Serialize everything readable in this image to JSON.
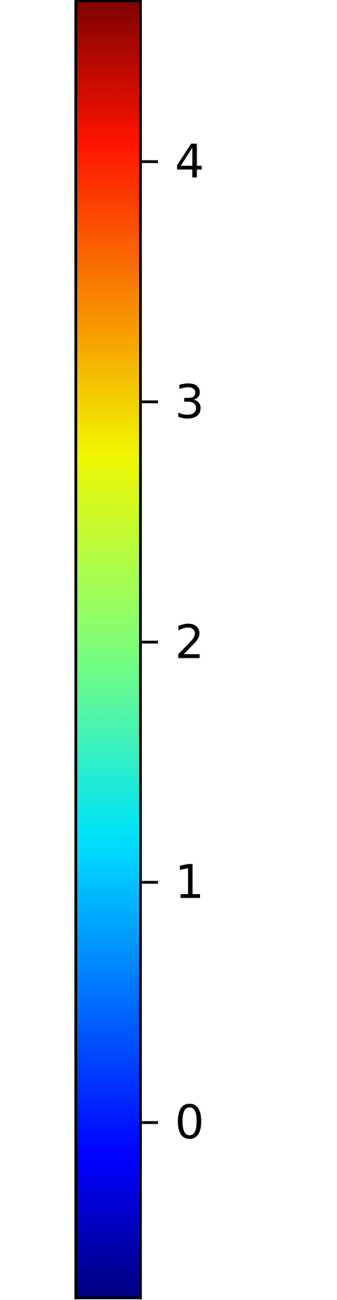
{
  "chart_data": {
    "type": "heatmap",
    "colormap": "jet",
    "orientation": "vertical",
    "colorbar_range": [
      -0.73,
      4.67
    ],
    "ticks": [
      {
        "value": 0,
        "label": "0"
      },
      {
        "value": 1,
        "label": "1"
      },
      {
        "value": 2,
        "label": "2"
      },
      {
        "value": 3,
        "label": "3"
      },
      {
        "value": 4,
        "label": "4"
      }
    ],
    "tick_side": "right",
    "title": "",
    "label": ""
  },
  "colors": {
    "frame": "#000000",
    "background": "#ffffff",
    "gradient_stops": [
      {
        "offset": 0.0,
        "color": "#00007f"
      },
      {
        "offset": 0.11,
        "color": "#0000ff"
      },
      {
        "offset": 0.34,
        "color": "#00d4ff"
      },
      {
        "offset": 0.36,
        "color": "#00e4f8"
      },
      {
        "offset": 0.5,
        "color": "#7dff7a"
      },
      {
        "offset": 0.65,
        "color": "#f0f700"
      },
      {
        "offset": 0.89,
        "color": "#ff1400"
      },
      {
        "offset": 1.0,
        "color": "#7f0000"
      }
    ]
  }
}
